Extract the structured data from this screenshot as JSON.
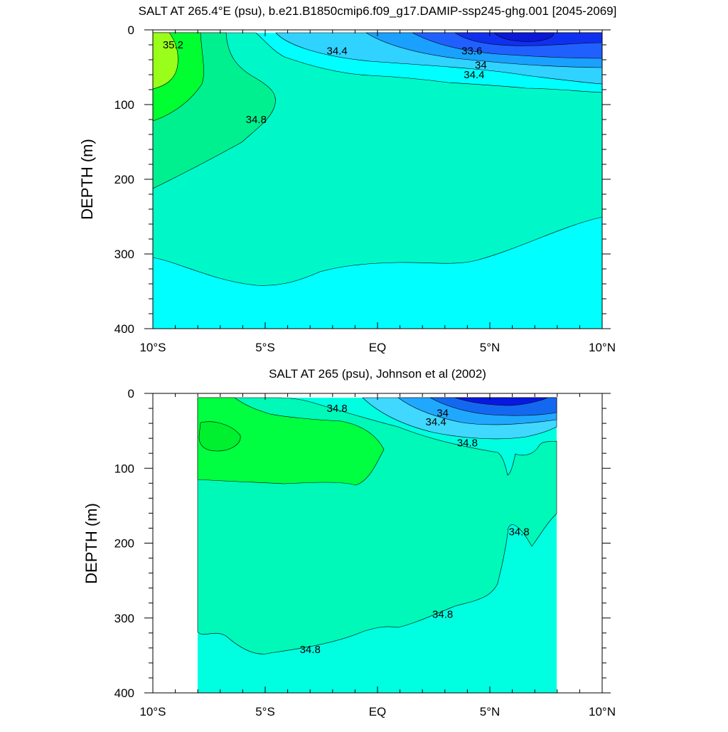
{
  "figure": {
    "panels": [
      {
        "title": "SALT AT 265.4°E (psu), b.e21.B1850cmip6.f09_g17.DAMIP-ssp245-ghg.001 [2045-2069]",
        "ylabel": "DEPTH (m)",
        "xticks": [
          "10°S",
          "5°S",
          "EQ",
          "5°N",
          "10°N"
        ],
        "yticks": [
          "0",
          "100",
          "200",
          "300",
          "400"
        ]
      },
      {
        "title": "SALT AT 265 (psu), Johnson et al (2002)",
        "ylabel": "DEPTH (m)",
        "xticks": [
          "10°S",
          "5°S",
          "EQ",
          "5°N",
          "10°N"
        ],
        "yticks": [
          "0",
          "100",
          "200",
          "300",
          "400"
        ]
      }
    ]
  },
  "chart_data": [
    {
      "type": "contour",
      "title": "SALT AT 265.4°E (psu), b.e21.B1850cmip6.f09_g17.DAMIP-ssp245-ghg.001 [2045-2069]",
      "xlabel": "",
      "ylabel": "DEPTH (m)",
      "xlim": [
        -10,
        10
      ],
      "ylim": [
        400,
        0
      ],
      "data_extent": {
        "x": [
          -10,
          10
        ],
        "y": [
          5,
          400
        ]
      },
      "contour_levels": [
        33.6,
        34.0,
        34.4,
        34.8,
        35.2
      ],
      "contour_labels": [
        {
          "text": "35.2",
          "x": -9.1,
          "y": 20
        },
        {
          "text": "34.4",
          "x": -1.8,
          "y": 28
        },
        {
          "text": "33.6",
          "x": 4.2,
          "y": 28
        },
        {
          "text": "34",
          "x": 4.6,
          "y": 47
        },
        {
          "text": "34.4",
          "x": 4.3,
          "y": 60
        },
        {
          "text": "34.8",
          "x": -5.4,
          "y": 120
        }
      ],
      "colors": {
        "very_fresh": "#1030f0",
        "fresh": "#2060ff",
        "medium_fresh": "#1aa0ff",
        "light_fresh": "#30d2ff",
        "base": "#00ffff",
        "c348": "#00f8c8",
        "c350": "#00f090",
        "c352": "#00ff30",
        "c354": "#99ff1a"
      }
    },
    {
      "type": "contour",
      "title": "SALT AT 265 (psu), Johnson et al (2002)",
      "xlabel": "",
      "ylabel": "DEPTH (m)",
      "xlim": [
        -10,
        10
      ],
      "ylim": [
        400,
        0
      ],
      "data_extent": {
        "x": [
          -8,
          8
        ],
        "y": [
          5,
          400
        ]
      },
      "contour_levels": [
        34.0,
        34.4,
        34.8
      ],
      "contour_labels": [
        {
          "text": "34.8",
          "x": -1.8,
          "y": 20
        },
        {
          "text": "34",
          "x": 2.9,
          "y": 26
        },
        {
          "text": "34.4",
          "x": 2.6,
          "y": 38
        },
        {
          "text": "34.8",
          "x": 4.0,
          "y": 66
        },
        {
          "text": "34.8",
          "x": 6.3,
          "y": 185
        },
        {
          "text": "34.8",
          "x": 2.9,
          "y": 295
        },
        {
          "text": "34.8",
          "x": -3.0,
          "y": 342
        }
      ],
      "colors": {
        "deep_blue": "#0818e0",
        "blue": "#1468f0",
        "medium_blue": "#20a8ff",
        "light_blue": "#40d8ff",
        "base": "#00ffe0",
        "c348": "#00f8b8",
        "c352": "#00ff40"
      }
    }
  ]
}
